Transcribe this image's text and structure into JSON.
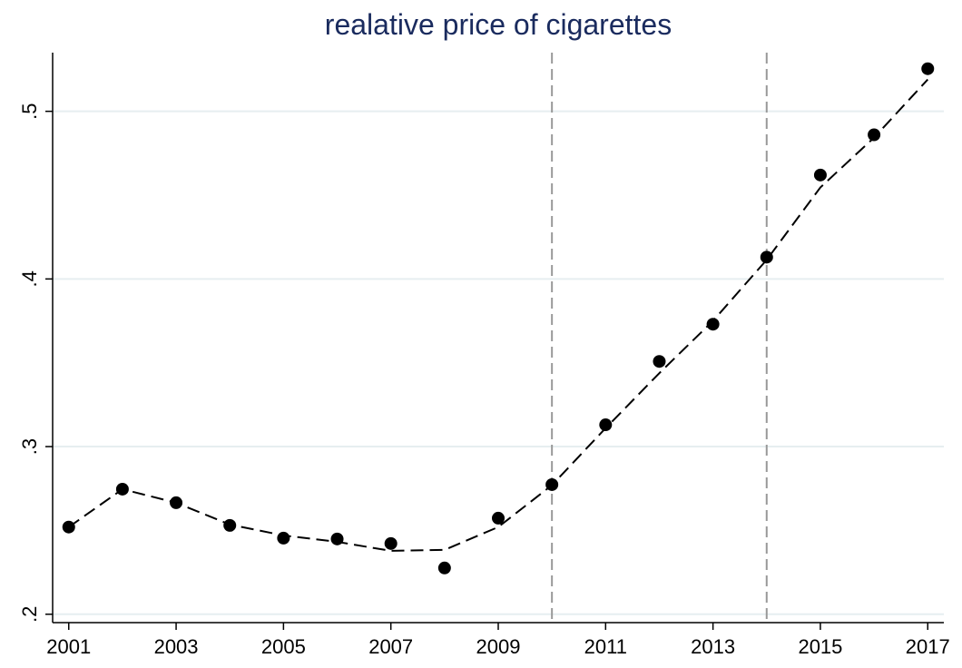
{
  "chart_data": {
    "type": "scatter",
    "title": "realative price of cigarettes",
    "x": [
      2001,
      2002,
      2003,
      2004,
      2005,
      2006,
      2007,
      2008,
      2009,
      2010,
      2011,
      2012,
      2013,
      2014,
      2015,
      2016,
      2017
    ],
    "series": [
      {
        "style": "marker",
        "color": "#000000",
        "values": [
          0.252,
          0.2746,
          0.2665,
          0.253,
          0.2454,
          0.2449,
          0.2422,
          0.2276,
          0.2573,
          0.2773,
          0.313,
          0.3508,
          0.373,
          0.413,
          0.462,
          0.486,
          0.5254
        ]
      },
      {
        "style": "dashed",
        "color": "#000000",
        "values": [
          0.252,
          0.2746,
          0.2665,
          0.2535,
          0.247,
          0.2432,
          0.2378,
          0.2384,
          0.252,
          0.277,
          0.311,
          0.3438,
          0.375,
          0.4114,
          0.4546,
          0.4843,
          0.519
        ]
      }
    ],
    "reference_lines_x": [
      2010,
      2014
    ],
    "reference_color": "#999999",
    "xlim": [
      2000.7,
      2017.3
    ],
    "xticks": [
      2001,
      2003,
      2005,
      2007,
      2009,
      2011,
      2013,
      2015,
      2017
    ],
    "ylim": [
      0.195,
      0.535
    ],
    "yticks": [
      {
        "value": 0.2,
        "label": ".2"
      },
      {
        "value": 0.3,
        "label": ".3"
      },
      {
        "value": 0.4,
        "label": ".4"
      },
      {
        "value": 0.5,
        "label": ".5"
      }
    ],
    "grid": true,
    "title_color": "#1a2b5e"
  }
}
